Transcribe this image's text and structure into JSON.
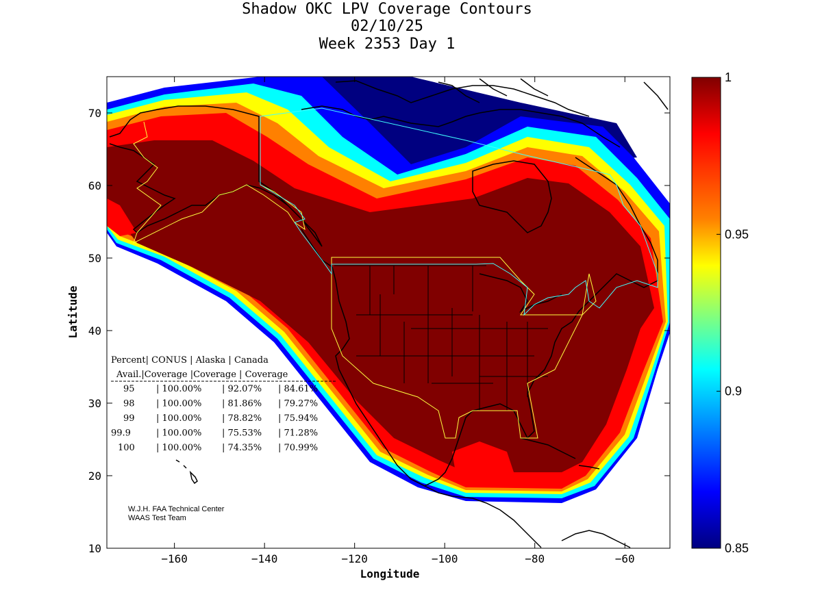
{
  "title": {
    "line1": "Shadow OKC LPV Coverage Contours",
    "line2": "02/10/25",
    "line3": "Week 2353 Day 1"
  },
  "axes": {
    "xlabel": "Longitude",
    "ylabel": "Latitude",
    "xlim": [
      -175,
      -50
    ],
    "ylim": [
      10,
      75
    ],
    "xticks": [
      -160,
      -140,
      -120,
      -100,
      -80,
      -60
    ],
    "yticks": [
      10,
      20,
      30,
      40,
      50,
      60,
      70
    ]
  },
  "colorbar": {
    "ticks": [
      "1",
      "0.95",
      "0.9",
      "0.85"
    ],
    "values": [
      1,
      0.95,
      0.9,
      0.85
    ],
    "range": [
      0.85,
      1
    ]
  },
  "colors": {
    "full": "#800000",
    "red": "#ff0000",
    "orange": "#ff8000",
    "yellow": "#ffff00",
    "cyan": "#00ffff",
    "blue": "#0000ff",
    "navy": "#000080",
    "region_outline_yellow": "#ffff40",
    "region_outline_cyan": "#40ffff"
  },
  "coverage_table": {
    "header1": [
      "Percent",
      "CONUS",
      "Alaska",
      "Canada"
    ],
    "header2": [
      "Avail.",
      "Coverage",
      "Coverage",
      "Coverage"
    ],
    "rows": [
      {
        "pct": "95",
        "conus": "100.00%",
        "alaska": "92.07%",
        "canada": "84.61%"
      },
      {
        "pct": "98",
        "conus": "100.00%",
        "alaska": "81.86%",
        "canada": "79.27%"
      },
      {
        "pct": "99",
        "conus": "100.00%",
        "alaska": "78.82%",
        "canada": "75.94%"
      },
      {
        "pct": "99.9",
        "conus": "100.00%",
        "alaska": "75.53%",
        "canada": "71.28%"
      },
      {
        "pct": "100",
        "conus": "100.00%",
        "alaska": "74.35%",
        "canada": "70.99%"
      }
    ]
  },
  "credit": {
    "line1": "W.J.H. FAA Technical Center",
    "line2": "WAAS Test Team"
  }
}
